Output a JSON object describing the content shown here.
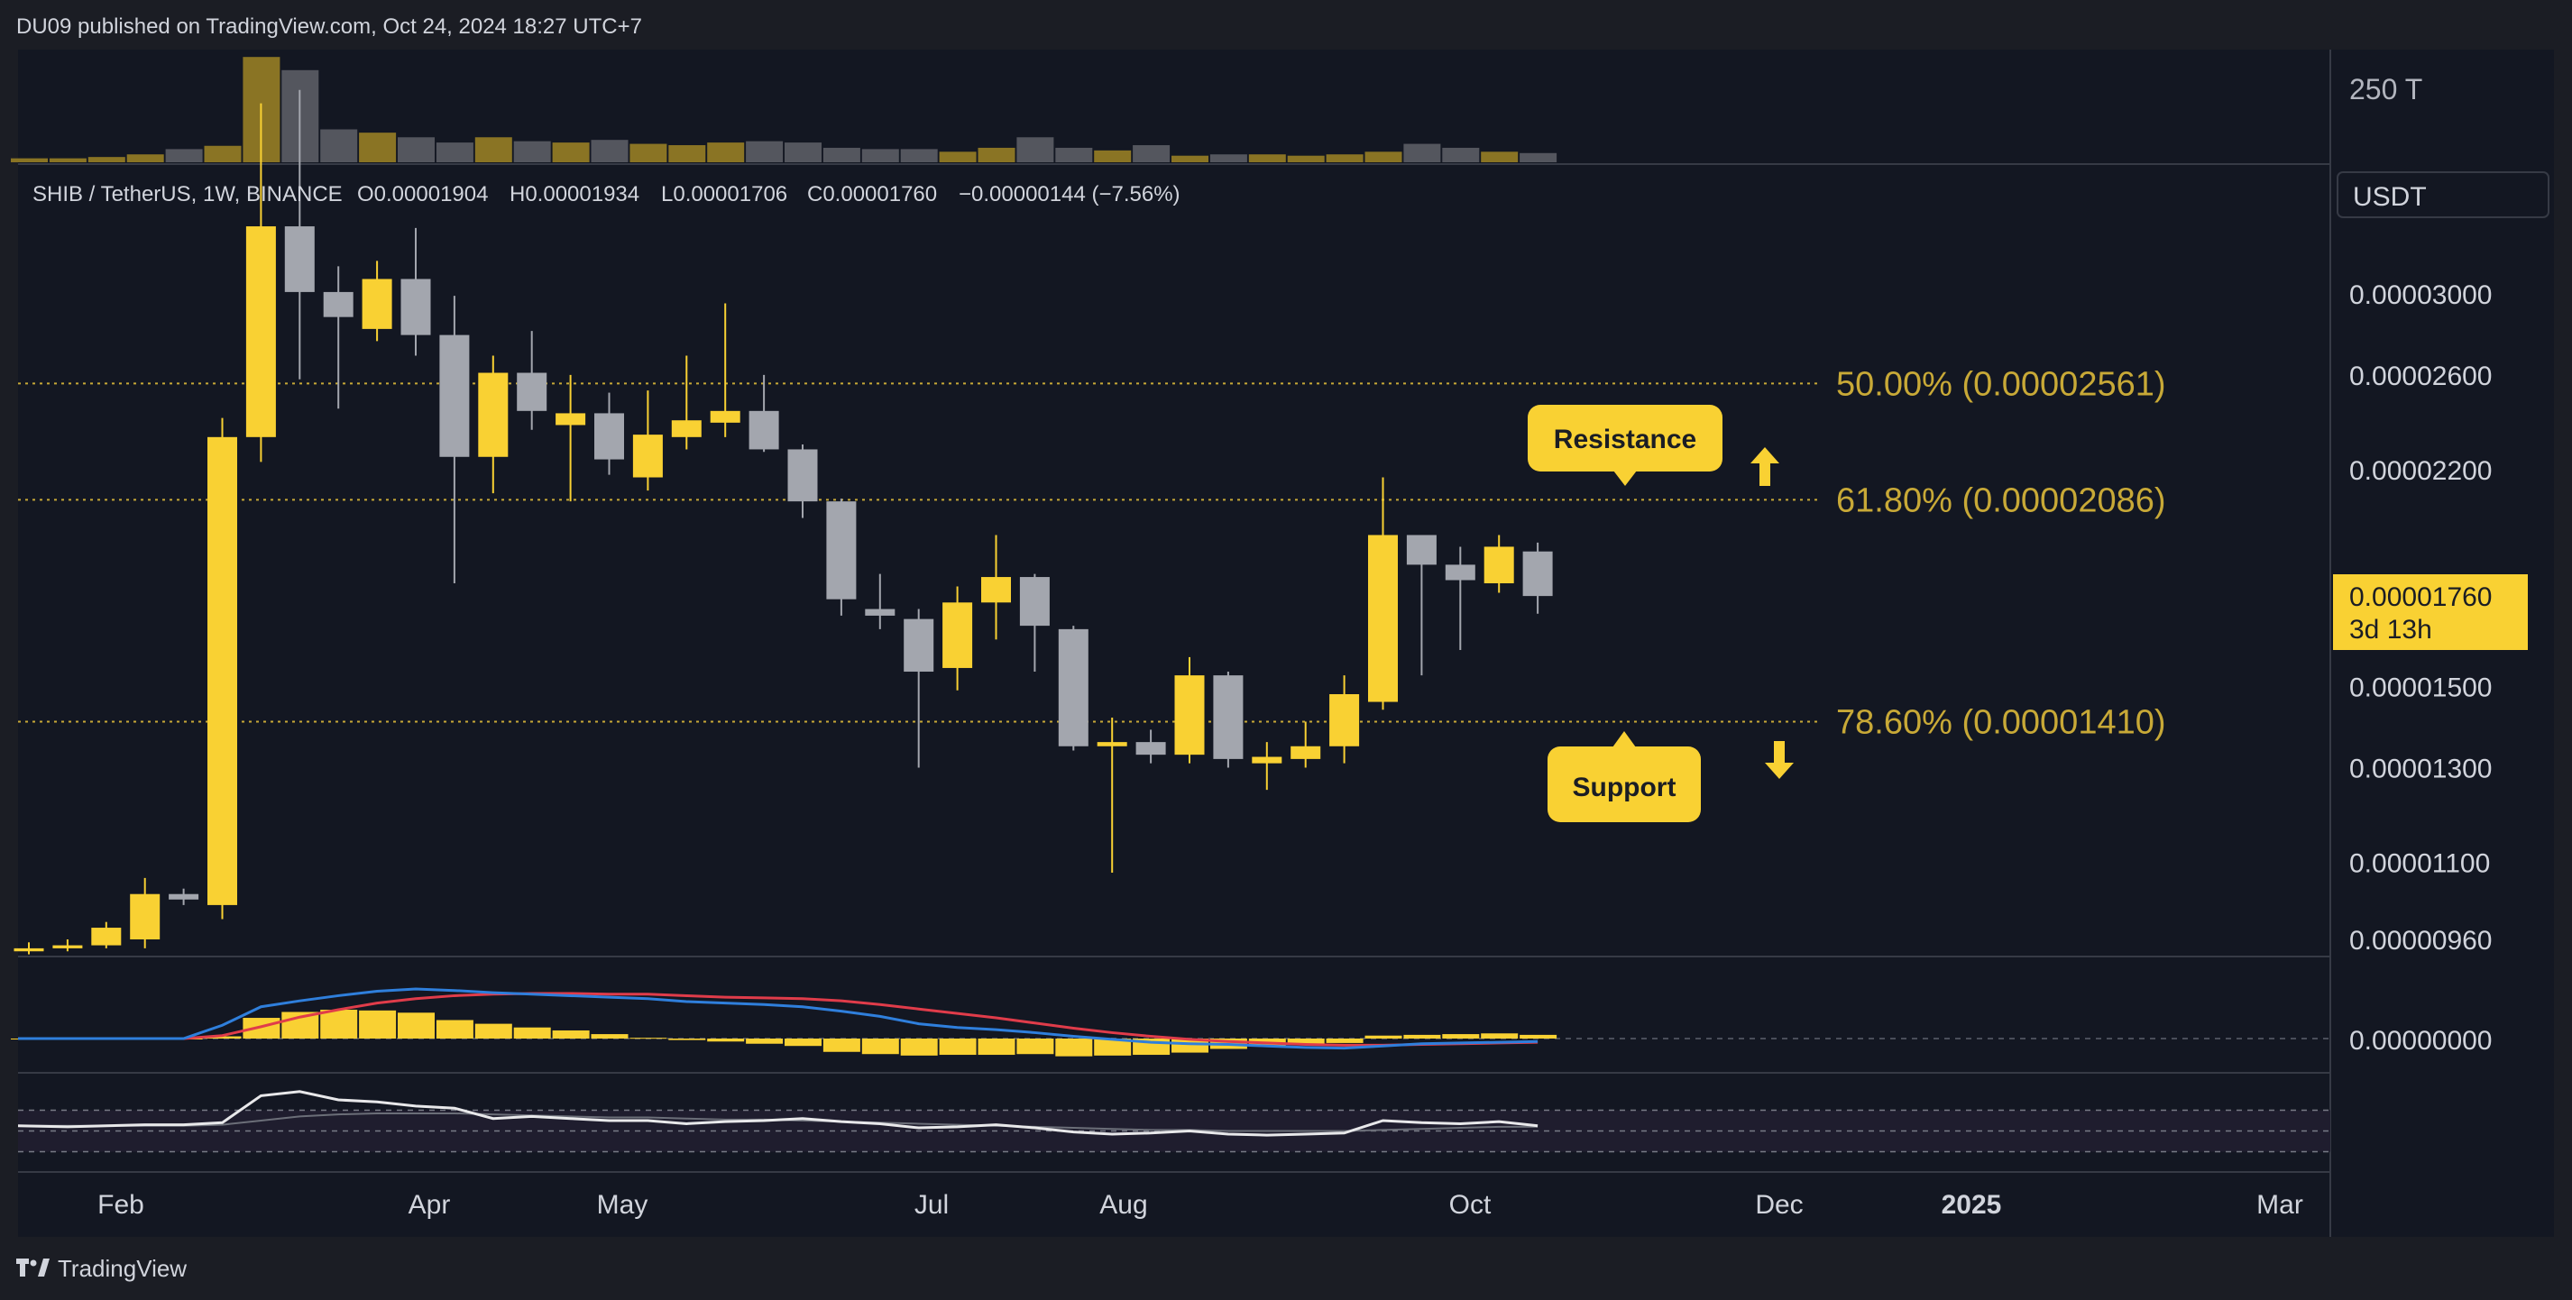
{
  "header": {
    "published": "DU09 published on TradingView.com, Oct 24, 2024 18:27 UTC+7"
  },
  "footer": {
    "brand": "TradingView",
    "logo_icon": "tradingview-logo-icon"
  },
  "legend": {
    "symbol": "SHIB / TetherUS, 1W, BINANCE",
    "open": "O0.00001904",
    "high": "H0.00001934",
    "low": "L0.00001706",
    "close": "C0.00001760",
    "change": "−0.00000144 (−7.56%)"
  },
  "currency": "USDT",
  "last_price": {
    "value": "0.00001760",
    "countdown": "3d 13h"
  },
  "volume_axis_label": "250 T",
  "macd_axis_label": "0.00000000",
  "colors": {
    "bull": "#f9d133",
    "bear": "#a3a6ae",
    "background": "#131722",
    "fib": "#c8a937",
    "macd": "#2f7fdc",
    "signal": "#e03c4a",
    "rsi": "#e8e8ea",
    "callout_bg": "#f9d133",
    "callout_text": "#1b1d24"
  },
  "annotations": {
    "resistance": "Resistance",
    "support": "Support",
    "up_arrow": "arrow-up-icon",
    "down_arrow": "arrow-down-icon"
  },
  "chart_data": {
    "type": "candlestick",
    "timeframe": "1W",
    "scale": "log",
    "grid": false,
    "y_ticks": [
      3e-05,
      2.6e-05,
      2.2e-05,
      1.5e-05,
      1.3e-05,
      1.1e-05,
      9.6e-06
    ],
    "y_tick_labels": [
      "0.00003000",
      "0.00002600",
      "0.00002200",
      "0.00001500",
      "0.00001300",
      "0.00001100",
      "0.00000960"
    ],
    "x_tick_labels": [
      {
        "label": "Feb",
        "bold": false
      },
      {
        "label": "Apr",
        "bold": false
      },
      {
        "label": "May",
        "bold": false
      },
      {
        "label": "Jul",
        "bold": false
      },
      {
        "label": "Aug",
        "bold": false
      },
      {
        "label": "Oct",
        "bold": false
      },
      {
        "label": "Dec",
        "bold": false
      },
      {
        "label": "2025",
        "bold": true
      },
      {
        "label": "Mar",
        "bold": false
      }
    ],
    "fib_levels": [
      {
        "label": "50.00% (0.00002561)",
        "price": 2.561e-05
      },
      {
        "label": "61.80% (0.00002086)",
        "price": 2.086e-05
      },
      {
        "label": "78.60% (0.00001410)",
        "price": 1.41e-05
      }
    ],
    "candles": [
      {
        "o": 9.4e-06,
        "h": 9.55e-06,
        "l": 9.35e-06,
        "c": 9.45e-06
      },
      {
        "o": 9.45e-06,
        "h": 9.6e-06,
        "l": 9.4e-06,
        "c": 9.5e-06
      },
      {
        "o": 9.5e-06,
        "h": 9.9e-06,
        "l": 9.45e-06,
        "c": 9.8e-06
      },
      {
        "o": 9.6e-06,
        "h": 1.07e-05,
        "l": 9.45e-06,
        "c": 1.04e-05
      },
      {
        "o": 1.04e-05,
        "h": 1.05e-05,
        "l": 1.02e-05,
        "c": 1.03e-05
      },
      {
        "o": 1.02e-05,
        "h": 2.41e-05,
        "l": 9.95e-06,
        "c": 2.33e-05
      },
      {
        "o": 2.33e-05,
        "h": 4.2e-05,
        "l": 2.23e-05,
        "c": 3.38e-05
      },
      {
        "o": 3.38e-05,
        "h": 4.3e-05,
        "l": 2.58e-05,
        "c": 3.01e-05
      },
      {
        "o": 3.01e-05,
        "h": 3.15e-05,
        "l": 2.45e-05,
        "c": 2.88e-05
      },
      {
        "o": 2.82e-05,
        "h": 3.18e-05,
        "l": 2.76e-05,
        "c": 3.08e-05
      },
      {
        "o": 3.08e-05,
        "h": 3.37e-05,
        "l": 2.69e-05,
        "c": 2.79e-05
      },
      {
        "o": 2.79e-05,
        "h": 2.99e-05,
        "l": 1.8e-05,
        "c": 2.25e-05
      },
      {
        "o": 2.25e-05,
        "h": 2.69e-05,
        "l": 2.11e-05,
        "c": 2.61e-05
      },
      {
        "o": 2.61e-05,
        "h": 2.81e-05,
        "l": 2.36e-05,
        "c": 2.44e-05
      },
      {
        "o": 2.38e-05,
        "h": 2.6e-05,
        "l": 2.08e-05,
        "c": 2.43e-05
      },
      {
        "o": 2.43e-05,
        "h": 2.52e-05,
        "l": 2.18e-05,
        "c": 2.24e-05
      },
      {
        "o": 2.17e-05,
        "h": 2.53e-05,
        "l": 2.12e-05,
        "c": 2.34e-05
      },
      {
        "o": 2.33e-05,
        "h": 2.69e-05,
        "l": 2.28e-05,
        "c": 2.4e-05
      },
      {
        "o": 2.39e-05,
        "h": 2.95e-05,
        "l": 2.33e-05,
        "c": 2.44e-05
      },
      {
        "o": 2.44e-05,
        "h": 2.6e-05,
        "l": 2.27e-05,
        "c": 2.28e-05
      },
      {
        "o": 2.28e-05,
        "h": 2.3e-05,
        "l": 2.02e-05,
        "c": 2.08e-05
      },
      {
        "o": 2.08e-05,
        "h": 2.09e-05,
        "l": 1.7e-05,
        "c": 1.75e-05
      },
      {
        "o": 1.72e-05,
        "h": 1.83e-05,
        "l": 1.66e-05,
        "c": 1.7e-05
      },
      {
        "o": 1.69e-05,
        "h": 1.72e-05,
        "l": 1.3e-05,
        "c": 1.54e-05
      },
      {
        "o": 1.55e-05,
        "h": 1.79e-05,
        "l": 1.49e-05,
        "c": 1.74e-05
      },
      {
        "o": 1.74e-05,
        "h": 1.96e-05,
        "l": 1.63e-05,
        "c": 1.82e-05
      },
      {
        "o": 1.82e-05,
        "h": 1.83e-05,
        "l": 1.54e-05,
        "c": 1.67e-05
      },
      {
        "o": 1.66e-05,
        "h": 1.67e-05,
        "l": 1.34e-05,
        "c": 1.35e-05
      },
      {
        "o": 1.35e-05,
        "h": 1.42e-05,
        "l": 1.08e-05,
        "c": 1.36e-05
      },
      {
        "o": 1.36e-05,
        "h": 1.39e-05,
        "l": 1.31e-05,
        "c": 1.33e-05
      },
      {
        "o": 1.33e-05,
        "h": 1.58e-05,
        "l": 1.31e-05,
        "c": 1.53e-05
      },
      {
        "o": 1.53e-05,
        "h": 1.54e-05,
        "l": 1.3e-05,
        "c": 1.32e-05
      },
      {
        "o": 1.31e-05,
        "h": 1.36e-05,
        "l": 1.25e-05,
        "c": 1.325e-05
      },
      {
        "o": 1.32e-05,
        "h": 1.41e-05,
        "l": 1.3e-05,
        "c": 1.35e-05
      },
      {
        "o": 1.35e-05,
        "h": 1.53e-05,
        "l": 1.31e-05,
        "c": 1.48e-05
      },
      {
        "o": 1.46e-05,
        "h": 2.17e-05,
        "l": 1.44e-05,
        "c": 1.96e-05
      },
      {
        "o": 1.96e-05,
        "h": 1.96e-05,
        "l": 1.53e-05,
        "c": 1.86e-05
      },
      {
        "o": 1.86e-05,
        "h": 1.92e-05,
        "l": 1.6e-05,
        "c": 1.81e-05
      },
      {
        "o": 1.8e-05,
        "h": 1.96e-05,
        "l": 1.77e-05,
        "c": 1.92e-05
      },
      {
        "o": 1.904e-05,
        "h": 1.934e-05,
        "l": 1.706e-05,
        "c": 1.76e-05
      }
    ],
    "volume": [
      0.6,
      0.6,
      0.8,
      1.2,
      2.0,
      2.5,
      16.0,
      14.0,
      5.0,
      4.5,
      3.8,
      3.0,
      3.8,
      3.2,
      3.0,
      3.4,
      2.8,
      2.6,
      3.0,
      3.2,
      3.0,
      2.2,
      2.0,
      2.0,
      1.6,
      2.2,
      3.8,
      2.2,
      1.8,
      2.6,
      1.0,
      1.2,
      1.2,
      1.0,
      1.2,
      1.6,
      2.8,
      2.2,
      1.6,
      1.4
    ],
    "macd": {
      "histogram": [
        0,
        0,
        0,
        0,
        0,
        0.3,
        2.8,
        3.6,
        3.9,
        3.8,
        3.5,
        2.5,
        2.0,
        1.5,
        1.1,
        0.6,
        0.1,
        -0.2,
        -0.4,
        -0.7,
        -1.0,
        -1.8,
        -2.1,
        -2.3,
        -2.2,
        -2.2,
        -2.1,
        -2.4,
        -2.3,
        -2.2,
        -1.9,
        -1.4,
        -1.1,
        -0.8,
        -0.6,
        0.4,
        0.5,
        0.6,
        0.7,
        0.5
      ],
      "macd_line": [
        0,
        0,
        0,
        0,
        0,
        1.8,
        4.3,
        5.1,
        5.8,
        6.4,
        6.7,
        6.5,
        6.2,
        6.0,
        5.8,
        5.6,
        5.4,
        5.0,
        4.8,
        4.6,
        4.3,
        3.7,
        3.0,
        2.0,
        1.5,
        1.2,
        0.8,
        0.3,
        -0.1,
        -0.5,
        -0.7,
        -0.8,
        -1.0,
        -1.2,
        -1.3,
        -1.0,
        -0.7,
        -0.6,
        -0.5,
        -0.4
      ],
      "signal_line": [
        0,
        0,
        0,
        0,
        0,
        0.4,
        1.6,
        2.9,
        3.9,
        4.8,
        5.4,
        5.8,
        6.0,
        6.1,
        6.1,
        6.0,
        6.0,
        5.8,
        5.6,
        5.5,
        5.4,
        5.1,
        4.6,
        4.0,
        3.4,
        2.8,
        2.1,
        1.4,
        0.8,
        0.3,
        -0.1,
        -0.4,
        -0.6,
        -0.8,
        -0.9,
        -0.9,
        -0.8,
        -0.7,
        -0.6,
        -0.5
      ]
    },
    "rsi": {
      "values": [
        55,
        54,
        55,
        56,
        56,
        58,
        84,
        88,
        80,
        78,
        74,
        72,
        62,
        64,
        62,
        60,
        60,
        57,
        59,
        60,
        62,
        59,
        57,
        53,
        54,
        56,
        53,
        49,
        47,
        48,
        50,
        47,
        46,
        47,
        48,
        60,
        58,
        57,
        59,
        55
      ],
      "average": [
        55,
        55,
        55,
        55,
        55,
        56,
        60,
        64,
        66,
        67,
        67,
        67,
        66,
        65,
        64,
        63,
        63,
        62,
        61,
        61,
        60,
        59,
        58,
        57,
        56,
        55,
        54,
        53,
        52,
        51,
        51,
        50,
        50,
        50,
        50,
        51,
        52,
        53,
        54,
        54
      ],
      "bands": [
        70,
        50,
        30
      ]
    }
  }
}
